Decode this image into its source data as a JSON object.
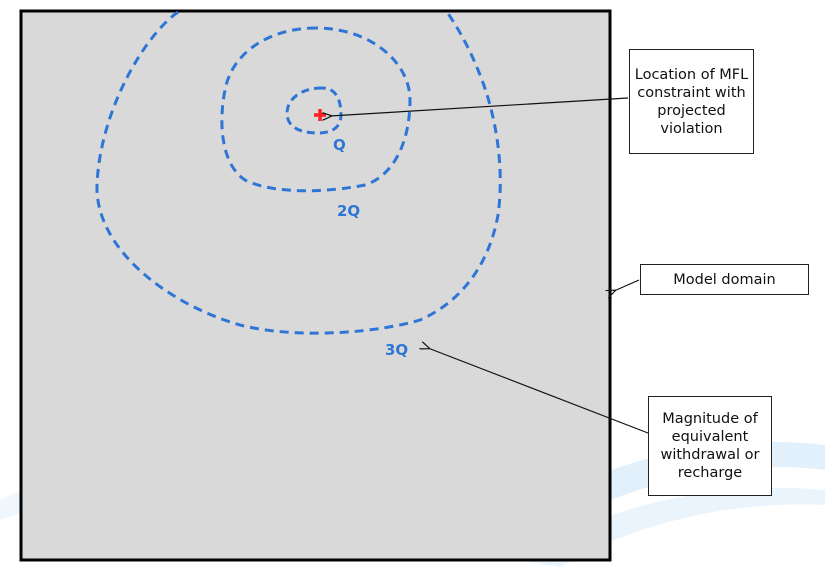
{
  "contour_labels": {
    "q": "Q",
    "two_q": "2Q",
    "three_q": "3Q"
  },
  "callouts": {
    "mfl": [
      "Location of MFL",
      "constraint with",
      "projected",
      "violation"
    ],
    "domain": [
      "Model domain"
    ],
    "magnitude": [
      "Magnitude of",
      "equivalent",
      "withdrawal or",
      "recharge"
    ]
  },
  "colors": {
    "domain_fill": "#d9d9d9",
    "contour": "#2e75d6",
    "marker": "#ff2020",
    "watermark": "#5aa9e6"
  },
  "icons": {
    "marker": "red-plus-marker"
  }
}
